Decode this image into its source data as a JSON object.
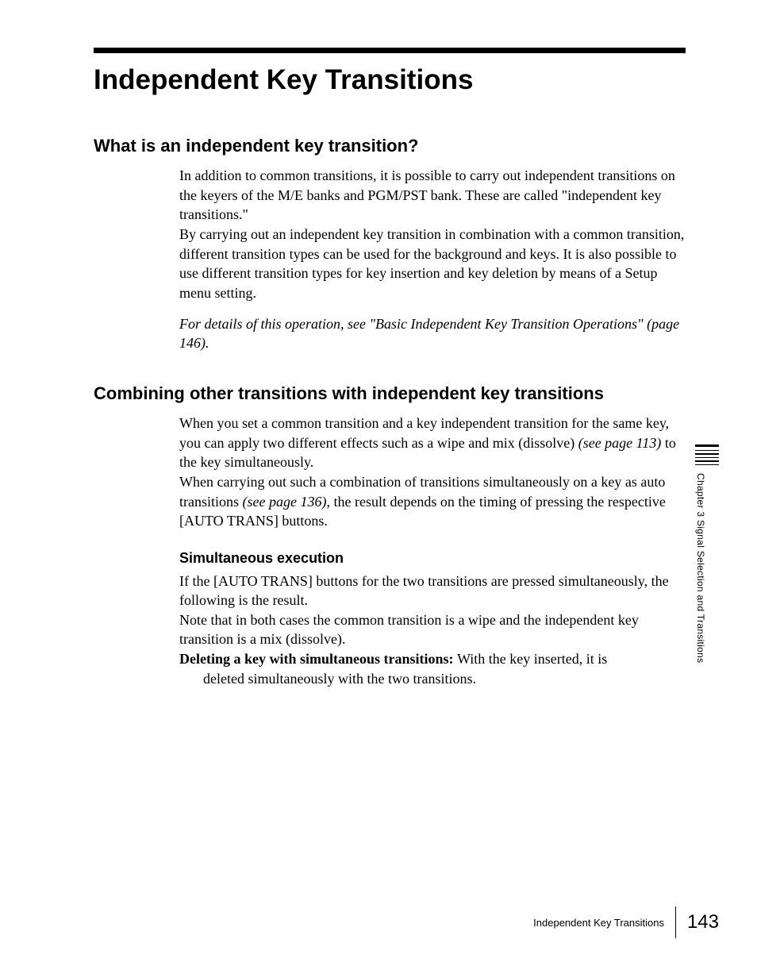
{
  "chapter_title": "Independent Key Transitions",
  "section1": {
    "heading": "What is an independent key transition?",
    "p1": "In addition to common transitions, it is possible to carry out independent transitions on the keyers of the M/E banks and PGM/PST bank. These are called \"independent key transitions.\"",
    "p2": "By carrying out an independent key transition in combination with a common transition, different transition types can be used for the background and keys. It is also possible to use different transition types for key insertion and key deletion by means of a Setup menu setting.",
    "ref": "For details of this operation, see \"Basic Independent Key Transition Operations\" (page 146)."
  },
  "section2": {
    "heading": "Combining other transitions with independent key transitions",
    "p1a": "When you set a common transition and a key independent transition for the same key, you can apply two different effects such as a wipe and mix (dissolve) ",
    "p1_ref": "(see page 113)",
    "p1b": " to the key simultaneously.",
    "p2a": "When carrying out such a combination of transitions simultaneously on a key as auto transitions ",
    "p2_ref": "(see page 136)",
    "p2b": ", the result depends on the timing of pressing the respective [AUTO TRANS] buttons.",
    "sub_heading": "Simultaneous execution",
    "p3": "If the [AUTO TRANS] buttons for the two transitions are pressed simultaneously, the following is the result.",
    "p4": "Note that in both cases the common transition is a wipe and the independent key transition is a mix (dissolve).",
    "p5_bold": "Deleting a key with simultaneous transitions: ",
    "p5_rest": "With the key inserted, it is ",
    "p5_cont": "deleted simultaneously with the two transitions."
  },
  "side_tab": "Chapter 3   Signal Selection and Transitions",
  "footer": {
    "title": "Independent Key Transitions",
    "page": "143"
  },
  "colors": {
    "text": "#000000",
    "bg": "#ffffff"
  },
  "fonts": {
    "heading_family": "Arial",
    "body_family": "Times New Roman",
    "chapter_title_size": 35,
    "section_h_size": 22,
    "body_size": 18,
    "sub_h_size": 18,
    "tab_size": 12,
    "footer_title_size": 13,
    "footer_page_size": 24
  }
}
